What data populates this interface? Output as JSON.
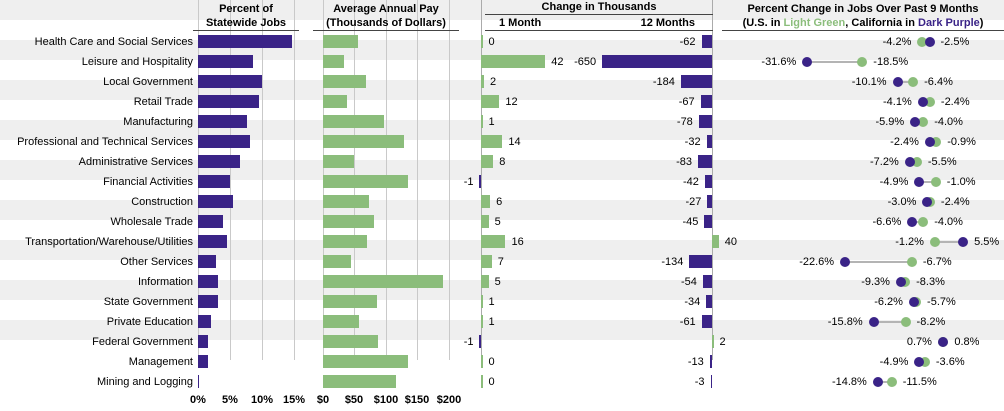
{
  "colors": {
    "dark_purple": "#3A2387",
    "light_green": "#8BBD7B",
    "band_gray": "#EFEFEF",
    "grid_gray": "#C9C9C9"
  },
  "header": {
    "p1": {
      "title_line1": "Percent of",
      "title_line2": "Statewide Jobs"
    },
    "p2": {
      "title_line1": "Average Annual Pay",
      "title_line2": "(Thousands of Dollars)"
    },
    "p3": {
      "title": "Change in Thousands",
      "sub_left": "1 Month",
      "sub_right": "12 Months"
    },
    "p4": {
      "title": "Percent Change in Jobs Over Past 9 Months",
      "sub_parts": [
        "(U.S. in ",
        "Light Green",
        ", California in ",
        "Dark Purple",
        ")"
      ]
    }
  },
  "chart_data": {
    "type": "multi-panel",
    "categories": [
      "Health Care and Social Services",
      "Leisure and Hospitality",
      "Local Government",
      "Retail Trade",
      "Manufacturing",
      "Professional and Technical Services",
      "Administrative Services",
      "Financial Activities",
      "Construction",
      "Wholesale Trade",
      "Transportation/Warehouse/Utilities",
      "Other Services",
      "Information",
      "State Government",
      "Private Education",
      "Federal Government",
      "Management",
      "Mining and Logging"
    ],
    "panels": [
      {
        "type": "bar",
        "title": "Percent of Statewide Jobs",
        "xlim": [
          0,
          15
        ],
        "tick_values": [
          0,
          5,
          10,
          15
        ],
        "tick_labels": [
          "0%",
          "5%",
          "10%",
          "15%"
        ],
        "values": [
          14.7,
          8.6,
          10.0,
          9.6,
          7.7,
          8.1,
          6.5,
          5.0,
          5.5,
          3.9,
          4.6,
          2.8,
          3.2,
          3.1,
          2.0,
          1.5,
          1.6,
          0.1
        ]
      },
      {
        "type": "bar",
        "title": "Average Annual Pay (Thousands of Dollars)",
        "xlim": [
          0,
          200
        ],
        "tick_values": [
          0,
          50,
          100,
          150,
          200
        ],
        "tick_labels": [
          "$0",
          "$50",
          "$100",
          "$150",
          "$200"
        ],
        "values": [
          55,
          34,
          68,
          39,
          98,
          129,
          49,
          135,
          74,
          82,
          70,
          44,
          191,
          86,
          57,
          87,
          136,
          117
        ]
      },
      {
        "type": "bar",
        "title": "Change in Thousands",
        "series": [
          {
            "name": "1 Month",
            "values": [
              0,
              42,
              2,
              12,
              1,
              14,
              8,
              -1,
              6,
              5,
              16,
              7,
              5,
              1,
              1,
              -1,
              0,
              0
            ]
          },
          {
            "name": "12 Months",
            "values": [
              -62,
              -650,
              -184,
              -67,
              -78,
              -32,
              -83,
              -42,
              -27,
              -45,
              40,
              -134,
              -54,
              -34,
              -61,
              2,
              -13,
              -3
            ]
          }
        ]
      },
      {
        "type": "scatter",
        "title": "Percent Change in Jobs Over Past 9 Months",
        "unit": "%",
        "series": [
          {
            "name": "U.S.",
            "color": "light_green",
            "values": [
              -4.2,
              -18.5,
              -6.4,
              -2.4,
              -4.0,
              -0.9,
              -5.5,
              -1.0,
              -2.4,
              -4.0,
              -1.2,
              -6.7,
              -8.3,
              -5.7,
              -8.2,
              0.7,
              -3.6,
              -11.5
            ]
          },
          {
            "name": "California",
            "color": "dark_purple",
            "values": [
              -2.5,
              -31.6,
              -10.1,
              -4.1,
              -5.9,
              -2.4,
              -7.2,
              -4.9,
              -3.0,
              -6.6,
              5.5,
              -22.6,
              -9.3,
              -6.2,
              -15.8,
              0.8,
              -4.9,
              -14.8
            ]
          }
        ]
      }
    ]
  }
}
